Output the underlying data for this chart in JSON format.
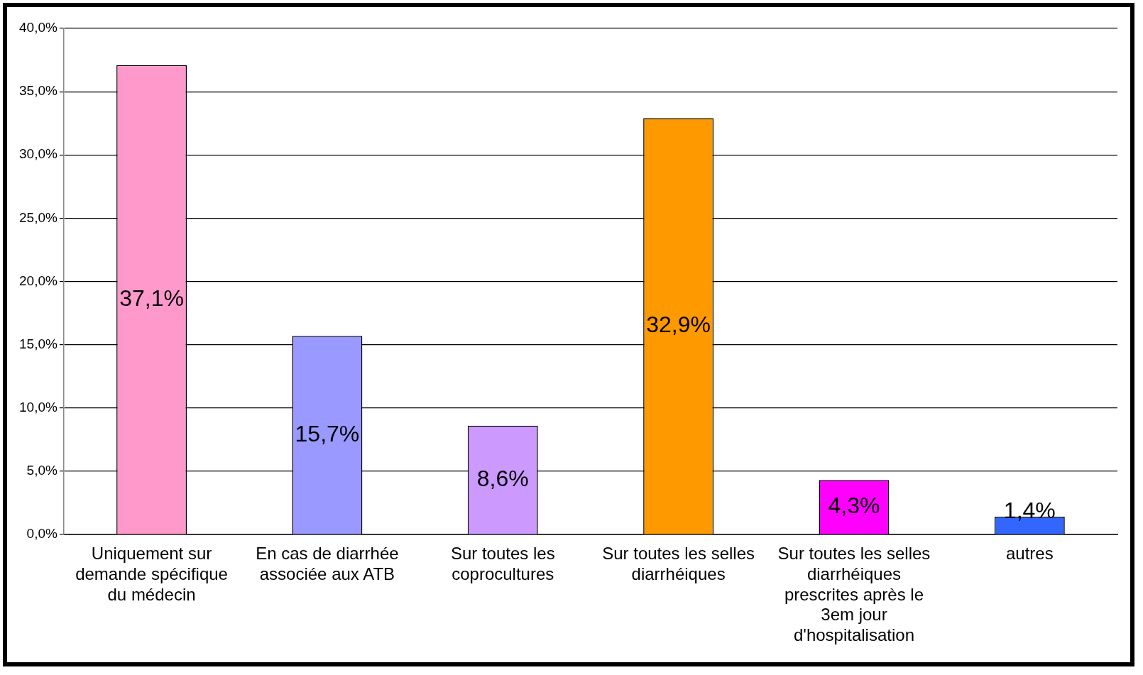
{
  "chart_data": {
    "type": "bar",
    "categories": [
      "Uniquement sur demande spécifique du médecin",
      "En cas de diarrhée associée aux ATB",
      "Sur toutes les coprocultures",
      "Sur toutes les selles diarrhéiques",
      "Sur toutes les selles diarrhéiques prescrites après le 3em jour d'hospitalisation",
      "autres"
    ],
    "values": [
      37.1,
      15.7,
      8.6,
      32.9,
      4.3,
      1.4
    ],
    "colors": [
      "#ff99cc",
      "#9999ff",
      "#cc99ff",
      "#ff9900",
      "#ff00ff",
      "#3366ff"
    ],
    "value_labels": [
      "37,1%",
      "15,7%",
      "8,6%",
      "32,9%",
      "4,3%",
      "1,4%"
    ],
    "ylim": [
      0,
      40
    ],
    "yticks": [
      {
        "value": 0,
        "label": "0,0%"
      },
      {
        "value": 5,
        "label": "5,0%"
      },
      {
        "value": 10,
        "label": "10,0%"
      },
      {
        "value": 15,
        "label": "15,0%"
      },
      {
        "value": 20,
        "label": "20,0%"
      },
      {
        "value": 25,
        "label": "25,0%"
      },
      {
        "value": 30,
        "label": "30,0%"
      },
      {
        "value": 35,
        "label": "35,0%"
      },
      {
        "value": 40,
        "label": "40,0%"
      }
    ],
    "grid": "y",
    "legend": false
  }
}
